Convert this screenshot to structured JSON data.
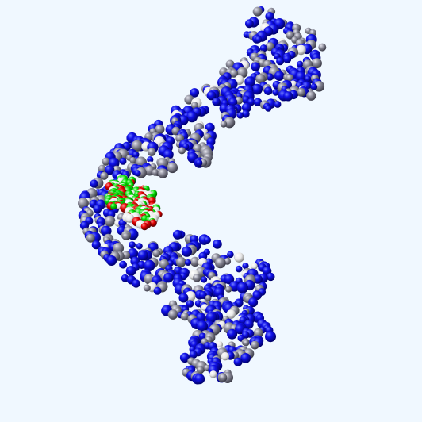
{
  "viewer": {
    "background_color": "#f0f8ff",
    "render_style": "space-filling",
    "atom_colors": {
      "nitrogen": "#0000e0",
      "carbon_protein": "#8c8c9a",
      "oxygen": "#e00000",
      "carbon_ligand": "#00dd00",
      "hydrogen": "#f0f0f0"
    }
  }
}
